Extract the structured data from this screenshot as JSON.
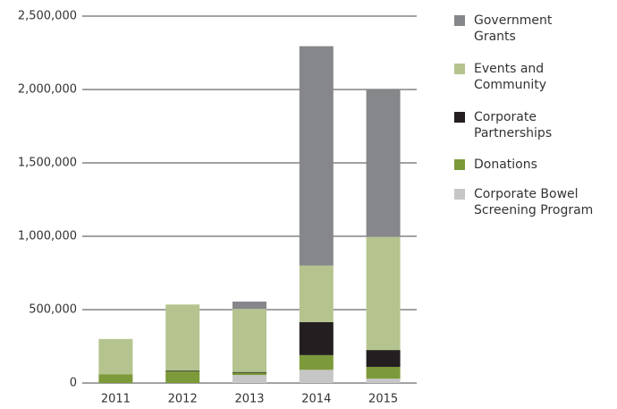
{
  "chart_data": {
    "type": "bar",
    "stacked": true,
    "categories": [
      "2011",
      "2012",
      "2013",
      "2014",
      "2015"
    ],
    "series": [
      {
        "name": "Corporate Bowel Screening Program",
        "color": "#c6c6c6",
        "values": [
          0,
          0,
          55000,
          90000,
          30000
        ]
      },
      {
        "name": "Donations",
        "color": "#7d9a3a",
        "values": [
          60000,
          80000,
          15000,
          100000,
          80000
        ]
      },
      {
        "name": "Corporate Partnerships",
        "color": "#231f20",
        "values": [
          0,
          5000,
          5000,
          225000,
          115000
        ]
      },
      {
        "name": "Events and Community",
        "color": "#b5c48f",
        "values": [
          240000,
          450000,
          430000,
          385000,
          770000
        ]
      },
      {
        "name": "Government Grants",
        "color": "#86878a",
        "values": [
          0,
          0,
          50000,
          1495000,
          1005000
        ]
      }
    ],
    "ylim": [
      0,
      2500000
    ],
    "yticks": [
      0,
      {
        "value": 500000,
        "label": "500,000"
      },
      {
        "value": 1000000,
        "label": "1,000,000"
      },
      {
        "value": 1500000,
        "label": "1,500,000"
      },
      {
        "value": 2000000,
        "label": "2,000,000"
      },
      {
        "value": 2500000,
        "label": "2,500,000"
      }
    ],
    "grid": true,
    "legend": "right"
  }
}
